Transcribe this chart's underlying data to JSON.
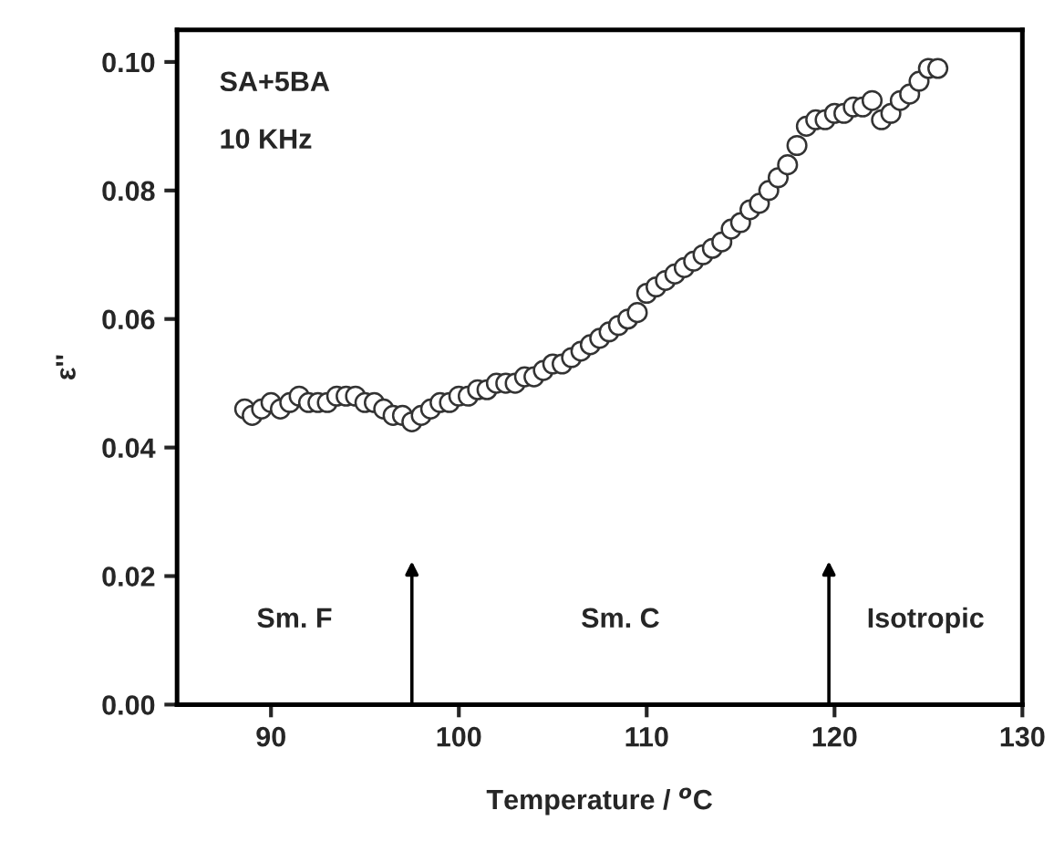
{
  "chart_data": {
    "type": "scatter",
    "xlabel": "Temperature / $^{o}$C",
    "ylabel": "ε''",
    "xlim": [
      85,
      130
    ],
    "xticks": [
      90,
      100,
      110,
      120,
      130
    ],
    "ylim": [
      0,
      0.105
    ],
    "yticks": [
      {
        "value": 0,
        "label": "0.00"
      },
      {
        "value": 0.02,
        "label": "0.02"
      },
      {
        "value": 0.04,
        "label": "0.04"
      },
      {
        "value": 0.06,
        "label": "0.06"
      },
      {
        "value": 0.08,
        "label": "0.08"
      },
      {
        "value": 0.1,
        "label": "0.10"
      }
    ],
    "marker": "circle",
    "grid": false,
    "legend": false,
    "series": [
      {
        "color": "#333333",
        "x": [
          88.6,
          89.0,
          89.5,
          90.0,
          90.5,
          91.0,
          91.5,
          92.0,
          92.5,
          93.0,
          93.5,
          94.0,
          94.5,
          95.0,
          95.5,
          96.0,
          96.5,
          97.0,
          97.5,
          98.0,
          98.5,
          99.0,
          99.5,
          100.0,
          100.5,
          101.0,
          101.5,
          102.0,
          102.5,
          103.0,
          103.5,
          104.0,
          104.5,
          105.0,
          105.5,
          106.0,
          106.5,
          107.0,
          107.5,
          108.0,
          108.5,
          109.0,
          109.5,
          110.0,
          110.5,
          111.0,
          111.5,
          112.0,
          112.5,
          113.0,
          113.5,
          114.0,
          114.5,
          115.0,
          115.5,
          116.0,
          116.5,
          117.0,
          117.5,
          118.0,
          118.5,
          119.0,
          119.5,
          120.0,
          120.5,
          121.0,
          121.5,
          122.0,
          122.5,
          123.0,
          123.5,
          124.0,
          124.5,
          125.0,
          125.5
        ],
        "values": [
          0.046,
          0.045,
          0.046,
          0.047,
          0.046,
          0.047,
          0.048,
          0.047,
          0.047,
          0.047,
          0.048,
          0.048,
          0.048,
          0.047,
          0.047,
          0.046,
          0.045,
          0.045,
          0.044,
          0.045,
          0.046,
          0.047,
          0.047,
          0.048,
          0.048,
          0.049,
          0.049,
          0.05,
          0.05,
          0.05,
          0.051,
          0.051,
          0.052,
          0.053,
          0.053,
          0.054,
          0.055,
          0.056,
          0.057,
          0.058,
          0.059,
          0.06,
          0.061,
          0.064,
          0.065,
          0.066,
          0.067,
          0.068,
          0.069,
          0.07,
          0.071,
          0.072,
          0.074,
          0.075,
          0.077,
          0.078,
          0.08,
          0.082,
          0.084,
          0.087,
          0.09,
          0.091,
          0.091,
          0.092,
          0.092,
          0.093,
          0.093,
          0.094,
          0.091,
          0.092,
          0.094,
          0.095,
          0.097,
          0.099,
          0.099
        ]
      }
    ],
    "ref_lines": [
      {
        "axis": "x",
        "value": 97.5
      },
      {
        "axis": "x",
        "value": 119.7
      }
    ],
    "annotations": [
      "SA+5BA",
      "10 KHz",
      "Sm. F",
      "Sm. C",
      "Isotropic"
    ]
  }
}
